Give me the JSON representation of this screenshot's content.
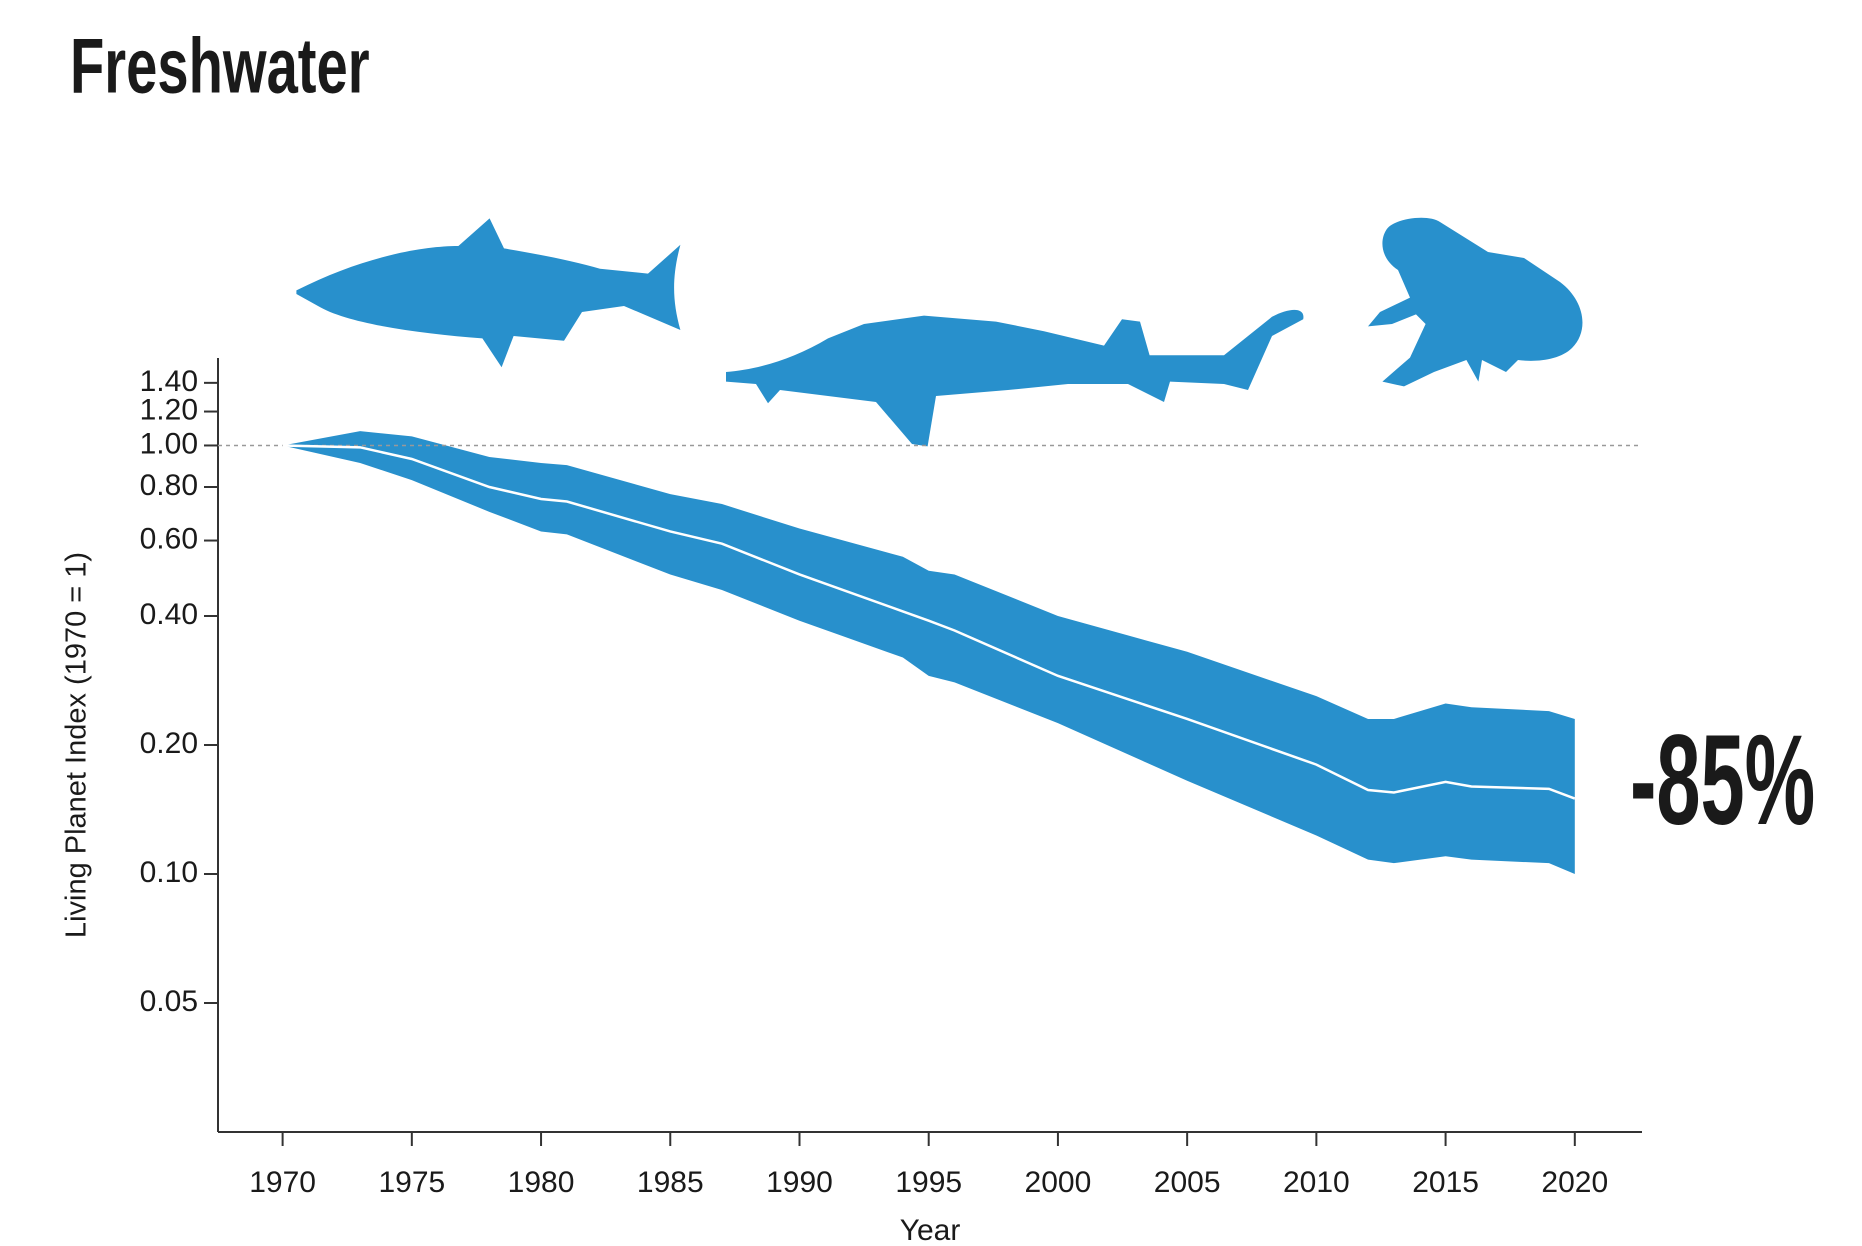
{
  "chart_data": {
    "type": "band-line",
    "title": "Freshwater",
    "y_label": "Living Planet Index (1970 = 1)",
    "x_label": "Year",
    "annotation": "-85%",
    "color": "#2890cc",
    "line_color": "#ffffff",
    "log_y": true,
    "baseline": 1,
    "x": [
      1970,
      1973,
      1975,
      1978,
      1980,
      1981,
      1985,
      1987,
      1990,
      1994,
      1995,
      1996,
      2000,
      2005,
      2010,
      2012,
      2013,
      2015,
      2016,
      2019,
      2020
    ],
    "values": [
      1.0,
      0.99,
      0.93,
      0.8,
      0.75,
      0.74,
      0.63,
      0.59,
      0.5,
      0.41,
      0.39,
      0.37,
      0.29,
      0.23,
      0.18,
      0.157,
      0.155,
      0.164,
      0.16,
      0.158,
      0.15
    ],
    "upper": [
      1.0,
      1.08,
      1.05,
      0.94,
      0.91,
      0.9,
      0.77,
      0.73,
      0.64,
      0.55,
      0.51,
      0.5,
      0.4,
      0.33,
      0.26,
      0.23,
      0.23,
      0.25,
      0.245,
      0.24,
      0.23
    ],
    "lower": [
      1.0,
      0.91,
      0.83,
      0.7,
      0.63,
      0.62,
      0.5,
      0.46,
      0.39,
      0.32,
      0.29,
      0.28,
      0.225,
      0.165,
      0.123,
      0.108,
      0.106,
      0.11,
      0.108,
      0.106,
      0.1
    ],
    "xlim": [
      1967.5,
      2022.6
    ],
    "ylim": [
      0.025,
      1.6
    ],
    "xticks": [
      1970,
      1975,
      1980,
      1985,
      1990,
      1995,
      2000,
      2005,
      2010,
      2015,
      2020
    ],
    "yticks": [
      0.05,
      {
        "value": 0.1,
        "label": "0.10"
      },
      {
        "value": 0.2,
        "label": "0.20"
      },
      {
        "value": 0.4,
        "label": "0.40"
      },
      {
        "value": 0.6,
        "label": "0.60"
      },
      {
        "value": 0.8,
        "label": "0.80"
      },
      {
        "value": 1,
        "label": "1.00"
      },
      {
        "value": 1.2,
        "label": "1.20"
      },
      {
        "value": 1.4,
        "label": "1.40"
      }
    ]
  }
}
